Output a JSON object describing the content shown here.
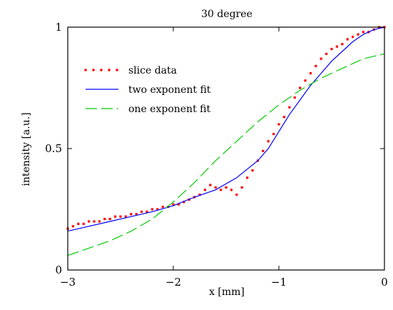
{
  "chart_data": {
    "type": "line",
    "title": "30 degree",
    "xlabel": "x [mm]",
    "ylabel": "intensity [a.u.]",
    "xlim": [
      -3,
      0
    ],
    "ylim": [
      0,
      1
    ],
    "x_ticks": [
      -3,
      -2,
      -1,
      0
    ],
    "x_tick_labels": [
      "−3",
      "−2",
      "−1",
      "0"
    ],
    "y_ticks": [
      0,
      0.5,
      1
    ],
    "y_tick_labels": [
      "0",
      "0.5",
      "1"
    ],
    "grid": false,
    "legend_position": "top-left",
    "series": [
      {
        "name": "slice data",
        "style": "dots",
        "color": "#ff0000",
        "x": [
          -3.0,
          -2.95,
          -2.9,
          -2.85,
          -2.8,
          -2.75,
          -2.7,
          -2.65,
          -2.6,
          -2.55,
          -2.5,
          -2.45,
          -2.4,
          -2.35,
          -2.3,
          -2.25,
          -2.2,
          -2.15,
          -2.1,
          -2.05,
          -2.0,
          -1.95,
          -1.9,
          -1.85,
          -1.8,
          -1.75,
          -1.7,
          -1.65,
          -1.6,
          -1.55,
          -1.5,
          -1.45,
          -1.4,
          -1.35,
          -1.3,
          -1.25,
          -1.2,
          -1.15,
          -1.1,
          -1.05,
          -1.0,
          -0.95,
          -0.9,
          -0.85,
          -0.8,
          -0.75,
          -0.7,
          -0.65,
          -0.6,
          -0.55,
          -0.5,
          -0.45,
          -0.4,
          -0.35,
          -0.3,
          -0.25,
          -0.2,
          -0.15,
          -0.1,
          -0.05,
          0.0
        ],
        "y": [
          0.17,
          0.18,
          0.19,
          0.19,
          0.2,
          0.2,
          0.2,
          0.21,
          0.21,
          0.22,
          0.22,
          0.22,
          0.23,
          0.23,
          0.24,
          0.24,
          0.25,
          0.25,
          0.26,
          0.26,
          0.27,
          0.27,
          0.28,
          0.29,
          0.3,
          0.31,
          0.33,
          0.35,
          0.34,
          0.33,
          0.34,
          0.33,
          0.31,
          0.34,
          0.38,
          0.41,
          0.45,
          0.49,
          0.53,
          0.56,
          0.6,
          0.63,
          0.67,
          0.71,
          0.75,
          0.78,
          0.81,
          0.84,
          0.87,
          0.89,
          0.91,
          0.92,
          0.93,
          0.95,
          0.96,
          0.97,
          0.98,
          0.98,
          0.99,
          1.0,
          1.0
        ]
      },
      {
        "name": "two exponent fit",
        "style": "solid",
        "color": "#0000ff",
        "x": [
          -3.0,
          -2.8,
          -2.6,
          -2.4,
          -2.2,
          -2.0,
          -1.8,
          -1.6,
          -1.4,
          -1.2,
          -1.1,
          -1.0,
          -0.9,
          -0.8,
          -0.7,
          -0.6,
          -0.5,
          -0.4,
          -0.3,
          -0.2,
          -0.1,
          0.0
        ],
        "y": [
          0.16,
          0.18,
          0.2,
          0.22,
          0.24,
          0.265,
          0.3,
          0.33,
          0.38,
          0.45,
          0.5,
          0.57,
          0.64,
          0.7,
          0.76,
          0.81,
          0.86,
          0.9,
          0.94,
          0.97,
          0.99,
          1.0
        ]
      },
      {
        "name": "one exponent fit",
        "style": "dashed",
        "color": "#00cc00",
        "x": [
          -3.0,
          -2.8,
          -2.6,
          -2.4,
          -2.2,
          -2.0,
          -1.8,
          -1.6,
          -1.4,
          -1.2,
          -1.0,
          -0.8,
          -0.6,
          -0.4,
          -0.2,
          0.0
        ],
        "y": [
          0.06,
          0.09,
          0.12,
          0.16,
          0.21,
          0.28,
          0.36,
          0.45,
          0.53,
          0.61,
          0.68,
          0.74,
          0.79,
          0.83,
          0.87,
          0.89
        ]
      }
    ]
  }
}
